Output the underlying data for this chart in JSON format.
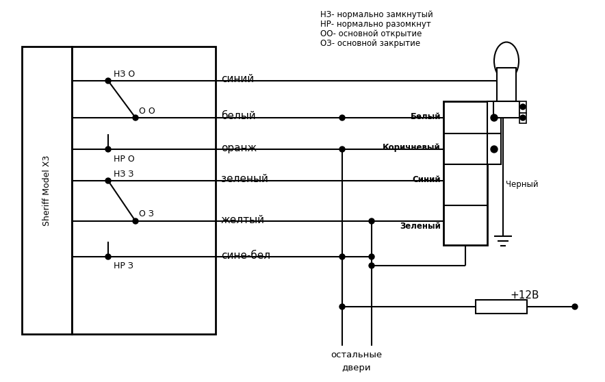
{
  "bg_color": "#ffffff",
  "line_color": "#000000",
  "legend_text": [
    "НЗ- нормально замкнутый",
    "НР- нормально разомкнут",
    "ОО- основной открытие",
    "ОЗ- основной закрытие"
  ],
  "sheriff_label": "Sheriff Model X3",
  "wire_labels": [
    "синий",
    "белый",
    "оранж",
    "зеленый",
    "желтый",
    "сине-бел"
  ],
  "switch_labels": [
    "НЗ О",
    "О О",
    "НР О",
    "НЗ З",
    "О З",
    "НР З"
  ],
  "connector_labels": [
    "Белый",
    "Коричневый",
    "Синий",
    "Зеленый"
  ],
  "black_label": "Черный",
  "plus12_label": "+12В",
  "bottom_label1": "остальные",
  "bottom_label2": "двери"
}
